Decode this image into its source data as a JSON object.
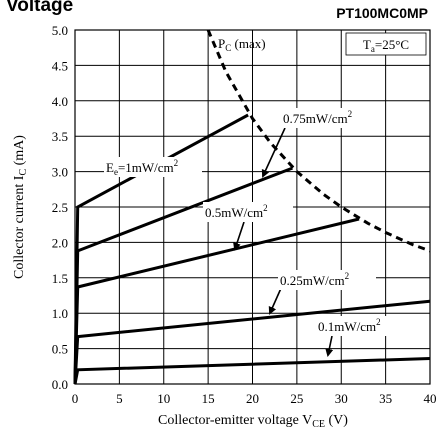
{
  "header": {
    "title_fragment": "Voltage",
    "model": "PT100MC0MP"
  },
  "chart_data": {
    "type": "line",
    "xlabel": "Collector-emitter voltage V",
    "xlabel_sub": "CE",
    "xlabel_unit": " (V)",
    "ylabel": "Collector current I",
    "ylabel_sub": "C",
    "ylabel_unit": " (mA)",
    "xlim": [
      0,
      40
    ],
    "ylim": [
      0,
      5.0
    ],
    "x_ticks": [
      "0",
      "5",
      "10",
      "15",
      "20",
      "25",
      "30",
      "35",
      "40"
    ],
    "y_ticks": [
      "0.0",
      "0.5",
      "1.0",
      "1.5",
      "2.0",
      "2.5",
      "3.0",
      "3.5",
      "4.0",
      "4.5",
      "5.0"
    ],
    "grid": true,
    "condition": {
      "prefix": "T",
      "sub": "a",
      "suffix": "=25°C"
    },
    "limit_curve": {
      "label_prefix": "P",
      "label_sub": "C",
      "label_suffix": " (max)",
      "x": [
        15.0,
        17.0,
        20.0,
        22.0,
        25.0,
        28.0,
        30.0,
        33.0,
        35.0,
        38.0,
        40.0
      ],
      "y": [
        5.0,
        4.41,
        3.75,
        3.41,
        3.0,
        2.68,
        2.5,
        2.27,
        2.14,
        1.97,
        1.88
      ]
    },
    "series": [
      {
        "name": "E",
        "name_sub": "e",
        "name_suffix": "=1mW/cm",
        "name_sup": "2",
        "x": [
          0.0,
          0.3,
          19.5
        ],
        "y": [
          0.0,
          2.5,
          3.8
        ]
      },
      {
        "name": "0.75mW/cm",
        "name_sup": "2",
        "x": [
          0.0,
          0.3,
          24.5
        ],
        "y": [
          0.0,
          1.88,
          3.05
        ]
      },
      {
        "name": "0.5mW/cm",
        "name_sup": "2",
        "x": [
          0.0,
          0.3,
          32.0
        ],
        "y": [
          0.0,
          1.37,
          2.33
        ]
      },
      {
        "name": "0.25mW/cm",
        "name_sup": "2",
        "x": [
          0.0,
          0.3,
          40.0
        ],
        "y": [
          0.0,
          0.67,
          1.17
        ]
      },
      {
        "name": "0.1mW/cm",
        "name_sup": "2",
        "x": [
          0.0,
          0.3,
          40.0
        ],
        "y": [
          0.0,
          0.2,
          0.36
        ]
      }
    ]
  }
}
